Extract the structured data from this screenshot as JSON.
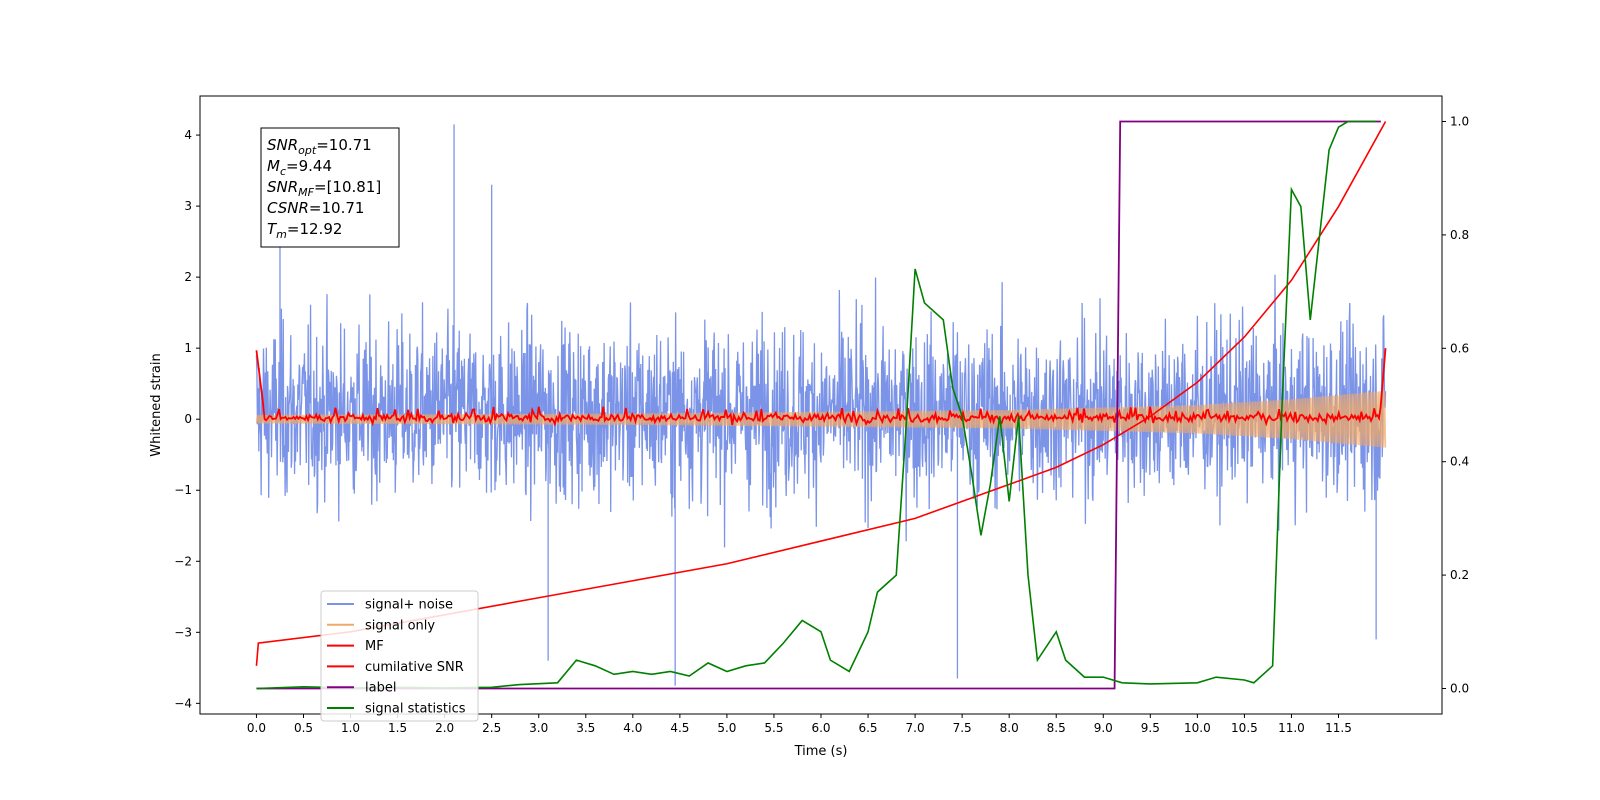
{
  "chart_data": {
    "type": "line",
    "xlabel": "Time (s)",
    "ylabel": "Whitened strain",
    "xlim": [
      -0.6,
      12.6
    ],
    "ylim": [
      -4.15,
      4.55
    ],
    "y2lim": [
      -0.045,
      1.045
    ],
    "x_ticks": [
      "0.0",
      "0.5",
      "1.0",
      "1.5",
      "2.0",
      "2.5",
      "3.0",
      "3.5",
      "4.0",
      "4.5",
      "5.0",
      "5.5",
      "6.0",
      "6.5",
      "7.0",
      "7.5",
      "8.0",
      "8.5",
      "9.0",
      "9.5",
      "10.0",
      "10.5",
      "11.0",
      "11.5"
    ],
    "y_ticks": [
      "4",
      "3",
      "2",
      "1",
      "0",
      "−1",
      "−2",
      "−3",
      "−4"
    ],
    "y2_ticks": [
      "1.0",
      "0.8",
      "0.6",
      "0.4",
      "0.2",
      "0.0"
    ],
    "grid": false,
    "legend_position": "lower-left",
    "annotation": {
      "lines": [
        {
          "symbol": "SNR",
          "sub": "opt",
          "value": "=10.71"
        },
        {
          "symbol": "M",
          "sub": "c",
          "value": "=9.44"
        },
        {
          "symbol": "SNR",
          "sub": "MF",
          "value": "=[10.81]"
        },
        {
          "symbol": "CSNR",
          "sub": "",
          "value": "=10.71"
        },
        {
          "symbol": "T",
          "sub": "m",
          "value": "=12.92"
        }
      ]
    },
    "colors": {
      "signal_noise": "#7b94e8",
      "signal_only": "#f0a868",
      "mf": "#ff0000",
      "cumulative_snr": "#ff0000",
      "label": "#800080",
      "signal_statistics": "#008000"
    },
    "series": [
      {
        "name": "signal+ noise",
        "axis": "left",
        "description": "whitened strain noise band, roughly within -2 to 2.5 with spikes up to 4.2",
        "x_range": [
          0.0,
          12.0
        ],
        "typical_range": [
          -1.9,
          2.0
        ],
        "spikes": [
          [
            2.1,
            4.15
          ],
          [
            4.45,
            -3.75
          ],
          [
            7.45,
            -3.65
          ],
          [
            3.1,
            -3.4
          ],
          [
            11.9,
            -3.1
          ],
          [
            0.25,
            2.85
          ],
          [
            2.5,
            3.3
          ]
        ]
      },
      {
        "name": "signal only",
        "axis": "left",
        "x_range": [
          0.0,
          12.0
        ],
        "envelope": [
          [
            0.0,
            0.06
          ],
          [
            4.0,
            0.08
          ],
          [
            8.0,
            0.13
          ],
          [
            10.0,
            0.2
          ],
          [
            11.0,
            0.28
          ],
          [
            12.0,
            0.4
          ]
        ]
      },
      {
        "name": "MF",
        "axis": "left",
        "x_range": [
          0.0,
          12.0
        ],
        "points": [
          [
            0.0,
            0.97
          ],
          [
            0.05,
            0.5
          ],
          [
            0.1,
            0.15
          ],
          [
            0.2,
            0.05
          ],
          [
            0.5,
            0.05
          ],
          [
            11.9,
            0.05
          ],
          [
            11.97,
            0.5
          ],
          [
            12.0,
            1.0
          ]
        ]
      },
      {
        "name": "cumilative SNR",
        "axis": "right",
        "points": [
          [
            0.0,
            0.04
          ],
          [
            0.02,
            0.08
          ],
          [
            1.0,
            0.1
          ],
          [
            2.0,
            0.13
          ],
          [
            3.0,
            0.16
          ],
          [
            4.0,
            0.19
          ],
          [
            5.0,
            0.22
          ],
          [
            6.0,
            0.26
          ],
          [
            7.0,
            0.3
          ],
          [
            8.0,
            0.36
          ],
          [
            8.5,
            0.39
          ],
          [
            9.0,
            0.43
          ],
          [
            9.5,
            0.48
          ],
          [
            10.0,
            0.54
          ],
          [
            10.5,
            0.62
          ],
          [
            11.0,
            0.72
          ],
          [
            11.5,
            0.85
          ],
          [
            12.0,
            1.0
          ]
        ]
      },
      {
        "name": "label",
        "axis": "right",
        "points": [
          [
            0.0,
            0.0
          ],
          [
            9.12,
            0.0
          ],
          [
            9.18,
            1.0
          ],
          [
            11.95,
            1.0
          ]
        ]
      },
      {
        "name": "signal statistics",
        "axis": "right",
        "points": [
          [
            0.0,
            0.0
          ],
          [
            0.5,
            0.003
          ],
          [
            1.0,
            0.001
          ],
          [
            1.5,
            0.002
          ],
          [
            2.0,
            0.001
          ],
          [
            2.5,
            0.002
          ],
          [
            2.8,
            0.007
          ],
          [
            3.2,
            0.01
          ],
          [
            3.4,
            0.05
          ],
          [
            3.6,
            0.04
          ],
          [
            3.8,
            0.025
          ],
          [
            4.0,
            0.03
          ],
          [
            4.2,
            0.025
          ],
          [
            4.4,
            0.03
          ],
          [
            4.6,
            0.022
          ],
          [
            4.8,
            0.045
          ],
          [
            5.0,
            0.03
          ],
          [
            5.2,
            0.04
          ],
          [
            5.4,
            0.045
          ],
          [
            5.6,
            0.08
          ],
          [
            5.8,
            0.12
          ],
          [
            6.0,
            0.1
          ],
          [
            6.1,
            0.05
          ],
          [
            6.3,
            0.03
          ],
          [
            6.5,
            0.1
          ],
          [
            6.6,
            0.17
          ],
          [
            6.8,
            0.2
          ],
          [
            6.9,
            0.45
          ],
          [
            7.0,
            0.74
          ],
          [
            7.1,
            0.68
          ],
          [
            7.3,
            0.65
          ],
          [
            7.4,
            0.53
          ],
          [
            7.5,
            0.48
          ],
          [
            7.6,
            0.38
          ],
          [
            7.7,
            0.27
          ],
          [
            7.8,
            0.36
          ],
          [
            7.9,
            0.48
          ],
          [
            8.0,
            0.33
          ],
          [
            8.1,
            0.48
          ],
          [
            8.2,
            0.2
          ],
          [
            8.3,
            0.05
          ],
          [
            8.5,
            0.1
          ],
          [
            8.6,
            0.05
          ],
          [
            8.8,
            0.02
          ],
          [
            9.0,
            0.02
          ],
          [
            9.2,
            0.01
          ],
          [
            9.5,
            0.008
          ],
          [
            10.0,
            0.01
          ],
          [
            10.2,
            0.02
          ],
          [
            10.5,
            0.015
          ],
          [
            10.6,
            0.01
          ],
          [
            10.8,
            0.04
          ],
          [
            10.9,
            0.5
          ],
          [
            11.0,
            0.88
          ],
          [
            11.1,
            0.85
          ],
          [
            11.2,
            0.65
          ],
          [
            11.3,
            0.8
          ],
          [
            11.4,
            0.95
          ],
          [
            11.5,
            0.99
          ],
          [
            11.6,
            1.0
          ],
          [
            11.9,
            1.0
          ]
        ]
      }
    ]
  }
}
